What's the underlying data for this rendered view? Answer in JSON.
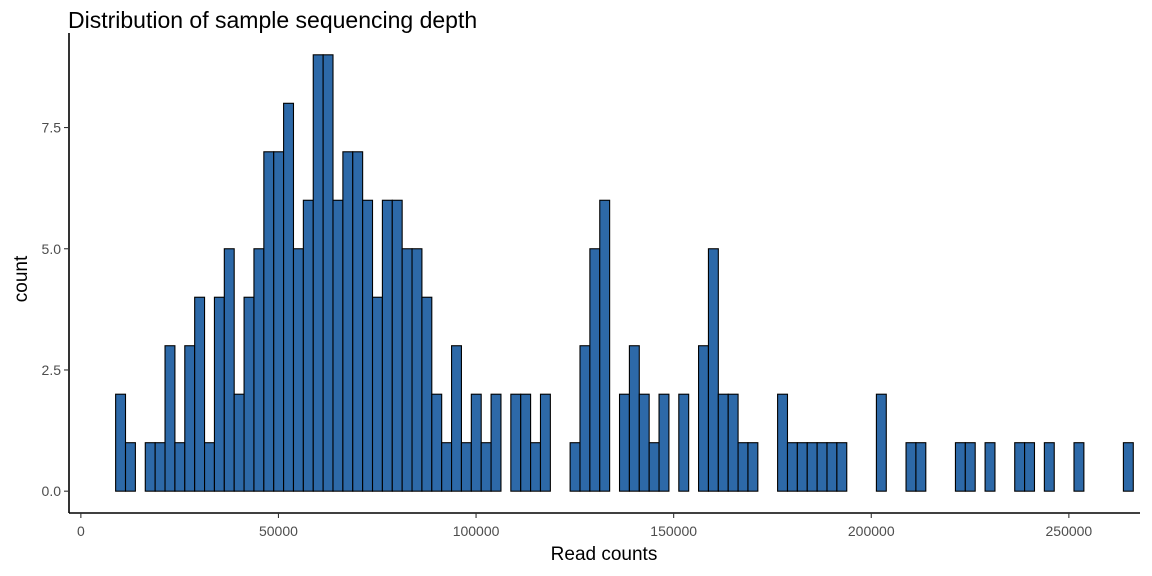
{
  "chart_data": {
    "type": "bar",
    "title": "Distribution of sample sequencing depth",
    "xlabel": "Read counts",
    "ylabel": "count",
    "xlim": [
      -3000,
      268000
    ],
    "ylim": [
      -0.45,
      9.45
    ],
    "x_ticks": [
      0,
      50000,
      100000,
      150000,
      200000,
      250000
    ],
    "x_tick_labels": [
      "0",
      "50000",
      "100000",
      "150000",
      "200000",
      "250000"
    ],
    "y_ticks": [
      0,
      2.5,
      5,
      7.5
    ],
    "y_tick_labels": [
      "0.0",
      "2.5",
      "5.0",
      "7.5"
    ],
    "bin_start": 8800,
    "bin_width": 2500,
    "bin_counts": [
      2,
      1,
      0,
      1,
      1,
      3,
      1,
      3,
      4,
      1,
      4,
      5,
      2,
      4,
      5,
      7,
      7,
      8,
      5,
      6,
      9,
      9,
      6,
      7,
      7,
      6,
      4,
      6,
      6,
      5,
      5,
      4,
      2,
      1,
      3,
      1,
      2,
      1,
      2,
      0,
      2,
      2,
      1,
      2,
      0,
      0,
      1,
      3,
      5,
      6,
      0,
      2,
      3,
      2,
      1,
      2,
      0,
      2,
      0,
      3,
      5,
      2,
      2,
      1,
      1,
      0,
      0,
      2,
      1,
      1,
      1,
      1,
      1,
      1,
      0,
      0,
      0,
      2,
      0,
      0,
      1,
      1,
      0,
      0,
      0,
      1,
      1,
      0,
      1,
      0,
      0,
      1,
      1,
      0,
      1,
      0,
      0,
      1,
      0,
      0,
      0,
      0,
      1
    ],
    "bar_fill": "#2d69a8",
    "bar_stroke": "#000000",
    "grid": false,
    "legend": "none"
  }
}
